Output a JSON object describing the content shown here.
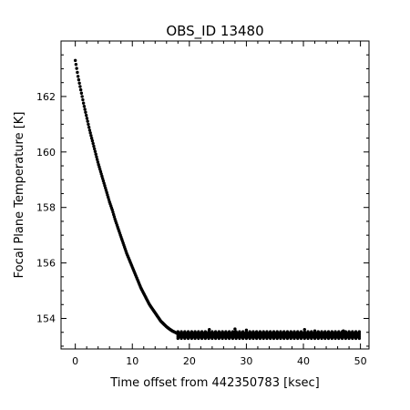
{
  "chart_data": {
    "type": "scatter",
    "title": "OBS_ID 13480",
    "xlabel": "Time offset from 442350783 [ksec]",
    "ylabel": "Focal Plane Temperature [K]",
    "xlim": [
      -2.5,
      51.5
    ],
    "ylim": [
      152.9,
      164.0
    ],
    "x_ticks": [
      0,
      10,
      20,
      30,
      40,
      50
    ],
    "y_ticks": [
      154,
      156,
      158,
      160,
      162
    ],
    "grid": false,
    "legend": "none",
    "colors": {
      "marker": "#000000",
      "axes": "#000000",
      "background": "#ffffff"
    },
    "series": [
      {
        "cooling_curve": {
          "x": [
            0,
            0.5,
            1,
            1.5,
            2,
            2.5,
            3,
            3.5,
            4,
            4.5,
            5,
            5.5,
            6,
            6.5,
            7,
            7.5,
            8,
            8.5,
            9,
            9.5,
            10,
            10.5,
            11,
            11.5,
            12,
            12.5,
            13,
            13.5,
            14,
            14.5,
            15,
            15.5,
            16,
            16.5,
            17,
            17.5,
            18
          ],
          "y": [
            163.3,
            162.7,
            162.2,
            161.7,
            161.25,
            160.8,
            160.4,
            160.0,
            159.6,
            159.25,
            158.9,
            158.55,
            158.2,
            157.9,
            157.55,
            157.25,
            156.95,
            156.65,
            156.35,
            156.1,
            155.85,
            155.6,
            155.35,
            155.1,
            154.9,
            154.7,
            154.5,
            154.35,
            154.2,
            154.05,
            153.9,
            153.8,
            153.7,
            153.62,
            153.55,
            153.5,
            153.45
          ]
        },
        "plateau": {
          "x_start": 18,
          "x_end": 50,
          "level": 153.4,
          "band_low": 153.28,
          "band_high": 153.52
        },
        "spikes": [
          {
            "x": 23.5,
            "y": 153.6
          },
          {
            "x": 28.0,
            "y": 153.62
          },
          {
            "x": 30.0,
            "y": 153.58
          },
          {
            "x": 40.2,
            "y": 153.6
          },
          {
            "x": 42.0,
            "y": 153.55
          },
          {
            "x": 47.0,
            "y": 153.55
          }
        ]
      }
    ]
  }
}
